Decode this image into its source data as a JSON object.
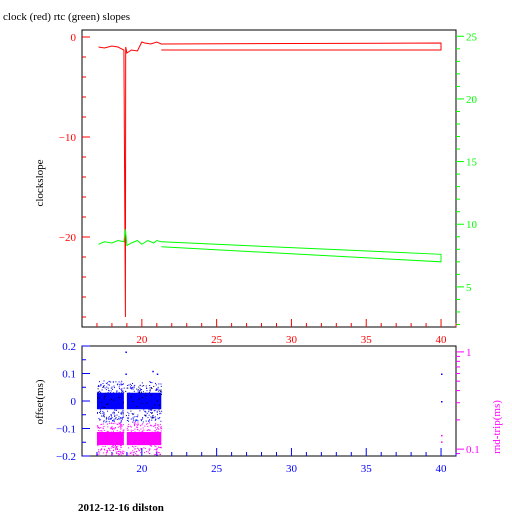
{
  "page": {
    "title": "clock (red) rtc (green) slopes",
    "footer": "2012-12-16 dilston"
  },
  "colors": {
    "clock": "#ff0000",
    "rtc": "#00ff00",
    "offset": "#0000ff",
    "rndtrip": "#ff00ff",
    "axis": "#000000"
  },
  "chart_data": [
    {
      "type": "line",
      "title": "clock (red) rtc (green) slopes",
      "ylabel": "clockslope",
      "y2label": "",
      "xlim": [
        16,
        41
      ],
      "ylim": [
        -29,
        0.7
      ],
      "y2lim": [
        1.8,
        25.5
      ],
      "xticks": [
        20,
        25,
        30,
        35,
        40
      ],
      "yticks": [
        0,
        -10,
        -20
      ],
      "y2ticks": [
        5,
        10,
        15,
        20,
        25
      ],
      "series": [
        {
          "axis": "left",
          "color": "#ff0000",
          "x": [
            17.1,
            17.5,
            18.0,
            18.4,
            18.8,
            18.9,
            18.92,
            19.0,
            19.3,
            19.7,
            20.0,
            20.2,
            20.6,
            21.0,
            21.3,
            40.0,
            40.0,
            21.3
          ],
          "y": [
            -1.0,
            -1.1,
            -0.9,
            -1.0,
            -1.3,
            -28.0,
            -1.0,
            -1.6,
            -1.3,
            -1.4,
            -0.5,
            -0.6,
            -0.7,
            -0.5,
            -0.7,
            -0.6,
            -1.3,
            -1.3
          ]
        },
        {
          "axis": "right",
          "color": "#00ff00",
          "x": [
            17.1,
            17.5,
            18.0,
            18.4,
            18.8,
            18.9,
            19.0,
            19.3,
            19.7,
            20.0,
            20.4,
            20.8,
            21.0,
            21.3,
            40.0,
            40.0,
            21.3
          ],
          "y": [
            8.4,
            8.6,
            8.5,
            8.7,
            8.6,
            9.6,
            8.3,
            8.5,
            8.7,
            8.4,
            8.7,
            8.5,
            8.7,
            8.6,
            7.6,
            7.0,
            8.2
          ]
        }
      ]
    },
    {
      "type": "scatter",
      "ylabel": "offset(ms)",
      "y2label": "rnd-trip(ms)",
      "xlim": [
        16,
        41
      ],
      "ylim": [
        -0.2,
        0.2
      ],
      "y2lim": [
        0.085,
        1.15
      ],
      "xticks": [
        20,
        25,
        30,
        35,
        40
      ],
      "yticks": [
        0.2,
        0.1,
        0,
        -0.1,
        -0.2
      ],
      "y2ticks": [
        1,
        0.1
      ],
      "series": [
        {
          "name": "offset",
          "color": "#0000ff",
          "clusters": [
            {
              "x": [
                17.0,
                18.8
              ],
              "y": [
                -0.03,
                0.03
              ]
            },
            {
              "x": [
                19.0,
                21.3
              ],
              "y": [
                -0.03,
                0.03
              ]
            }
          ],
          "outliers": [
            {
              "x": 18.9,
              "y": 0.18
            },
            {
              "x": 18.9,
              "y": 0.1
            },
            {
              "x": 20.7,
              "y": 0.11
            },
            {
              "x": 21.0,
              "y": 0.1
            },
            {
              "x": 40.0,
              "y": 0.1
            },
            {
              "x": 40.0,
              "y": 0.0
            }
          ]
        },
        {
          "name": "rnd-trip",
          "color": "#ff00ff",
          "clusters": [
            {
              "x": [
                17.0,
                18.8
              ],
              "y": [
                0.11,
                0.15
              ]
            },
            {
              "x": [
                19.0,
                21.3
              ],
              "y": [
                0.11,
                0.15
              ]
            }
          ],
          "outliers": [
            {
              "x": 40.0,
              "y": 0.14
            },
            {
              "x": 40.0,
              "y": 0.12
            }
          ]
        }
      ]
    }
  ]
}
